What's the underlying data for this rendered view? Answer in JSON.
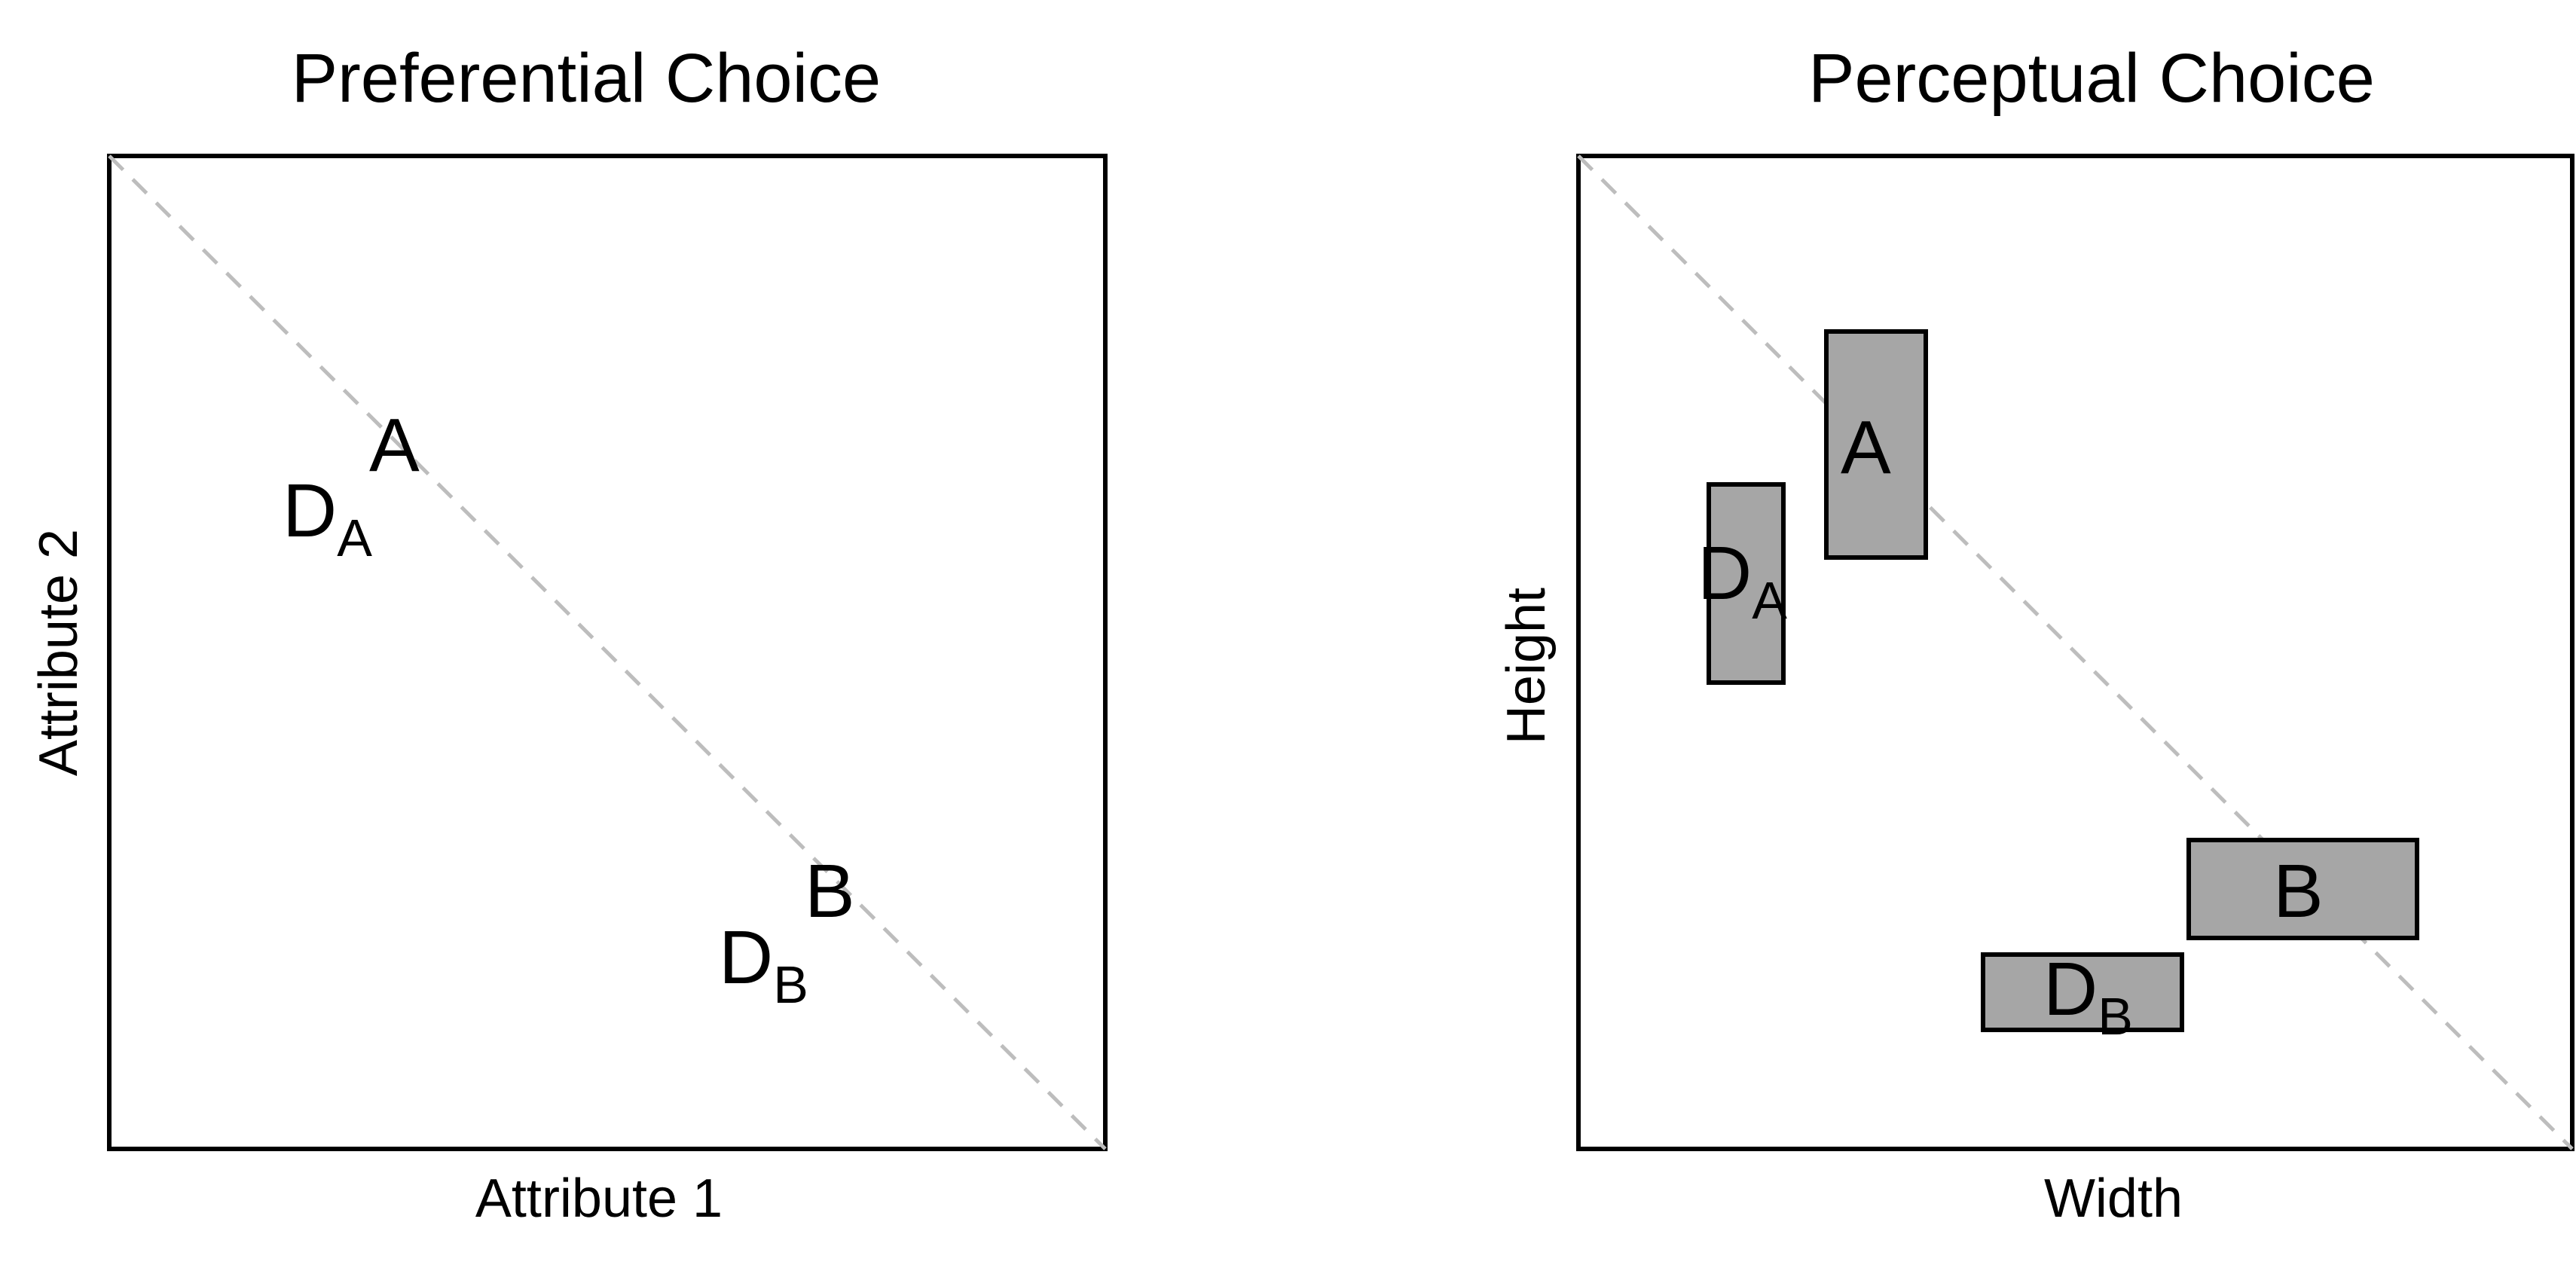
{
  "panels": [
    {
      "title": "Preferential Choice",
      "xlabel": "Attribute 1",
      "ylabel": "Attribute 2",
      "points": [
        {
          "main": "A",
          "sub": ""
        },
        {
          "main": "D",
          "sub": "A"
        },
        {
          "main": "B",
          "sub": ""
        },
        {
          "main": "D",
          "sub": "B"
        }
      ]
    },
    {
      "title": "Perceptual Choice",
      "xlabel": "Width",
      "ylabel": "Height",
      "items": [
        {
          "main": "A",
          "sub": "",
          "fill": "#a6a6a6"
        },
        {
          "main": "D",
          "sub": "A",
          "fill": "#a6a6a6"
        },
        {
          "main": "B",
          "sub": "",
          "fill": "#a6a6a6"
        },
        {
          "main": "D",
          "sub": "B",
          "fill": "#a6a6a6"
        }
      ]
    }
  ],
  "colors": {
    "frame": "#000000",
    "diagonal": "#bdbdbd",
    "rect_fill": "#a6a6a6"
  }
}
